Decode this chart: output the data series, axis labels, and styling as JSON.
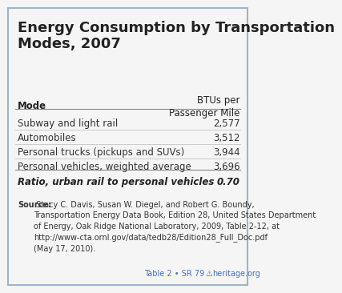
{
  "title": "Energy Consumption by Transportation\nModes, 2007",
  "background_color": "#f5f5f5",
  "border_color": "#a0b4c8",
  "header_mode": "Mode",
  "header_value": "BTUs per\nPassenger Mile",
  "rows": [
    {
      "mode": "Subway and light rail",
      "value": "2,577"
    },
    {
      "mode": "Automobiles",
      "value": "3,512"
    },
    {
      "mode": "Personal trucks (pickups and SUVs)",
      "value": "3,944"
    },
    {
      "mode": "Personal vehicles, weighted average",
      "value": "3,696"
    }
  ],
  "ratio_label": "Ratio, urban rail to personal vehicles",
  "ratio_value": "0.70",
  "source_bold": "Source:",
  "source_text": " Stacy C. Davis, Susan W. Diegel, and Robert G. Boundy,\nTransportation Energy Data Book, Edition 28, United States Department\nof Energy, Oak Ridge National Laboratory, 2009, Table 2-12, at\nhttp://www-cta.ornl.gov/data/tedb28/Edition28_Full_Doc.pdf\n(May 17, 2010).",
  "footer_text": "Table 2 • SR 79",
  "footer_right": "heritage.org",
  "footer_color": "#4472c4",
  "title_fontsize": 13,
  "body_fontsize": 8.5,
  "small_fontsize": 7.0,
  "line_color_heavy": "#888888",
  "line_color_light": "#bbbbbb"
}
